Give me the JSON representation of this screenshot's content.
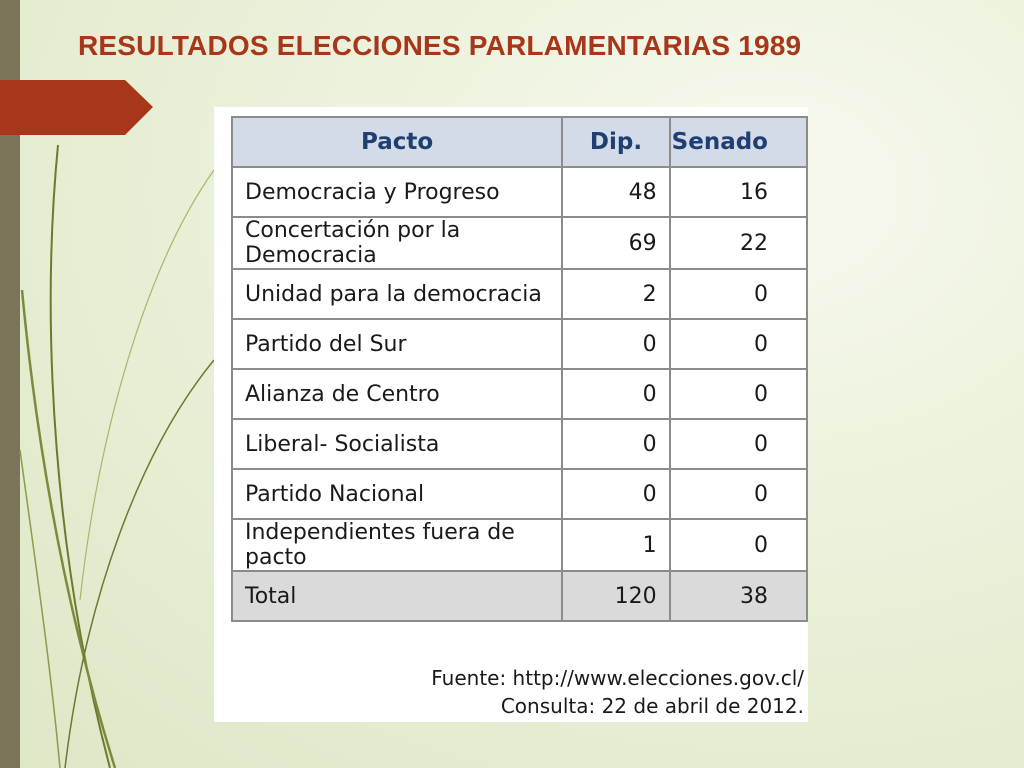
{
  "slide": {
    "title": "RESULTADOS ELECCIONES PARLAMENTARIAS 1989",
    "accent_color": "#a8361a",
    "sidebar_color": "#7a7458"
  },
  "table": {
    "headers": [
      "Pacto",
      "Dip.",
      "Senado"
    ],
    "rows": [
      [
        "Democracia y Progreso",
        "48",
        "16"
      ],
      [
        "Concertación por la Democracia",
        "69",
        "22"
      ],
      [
        "Unidad para la democracia",
        "2",
        "0"
      ],
      [
        "Partido del Sur",
        "0",
        "0"
      ],
      [
        "Alianza de Centro",
        "0",
        "0"
      ],
      [
        "Liberal- Socialista",
        "0",
        "0"
      ],
      [
        "Partido Nacional",
        "0",
        "0"
      ],
      [
        "Independientes fuera de pacto",
        "1",
        "0"
      ]
    ],
    "total": [
      "Total",
      "120",
      "38"
    ],
    "header_bg": "#d3dbe9",
    "header_text_color": "#1f3f73"
  },
  "source": {
    "line1": "Fuente: http://www.elecciones.gov.cl/",
    "line2": "Consulta: 22 de abril de 2012."
  }
}
